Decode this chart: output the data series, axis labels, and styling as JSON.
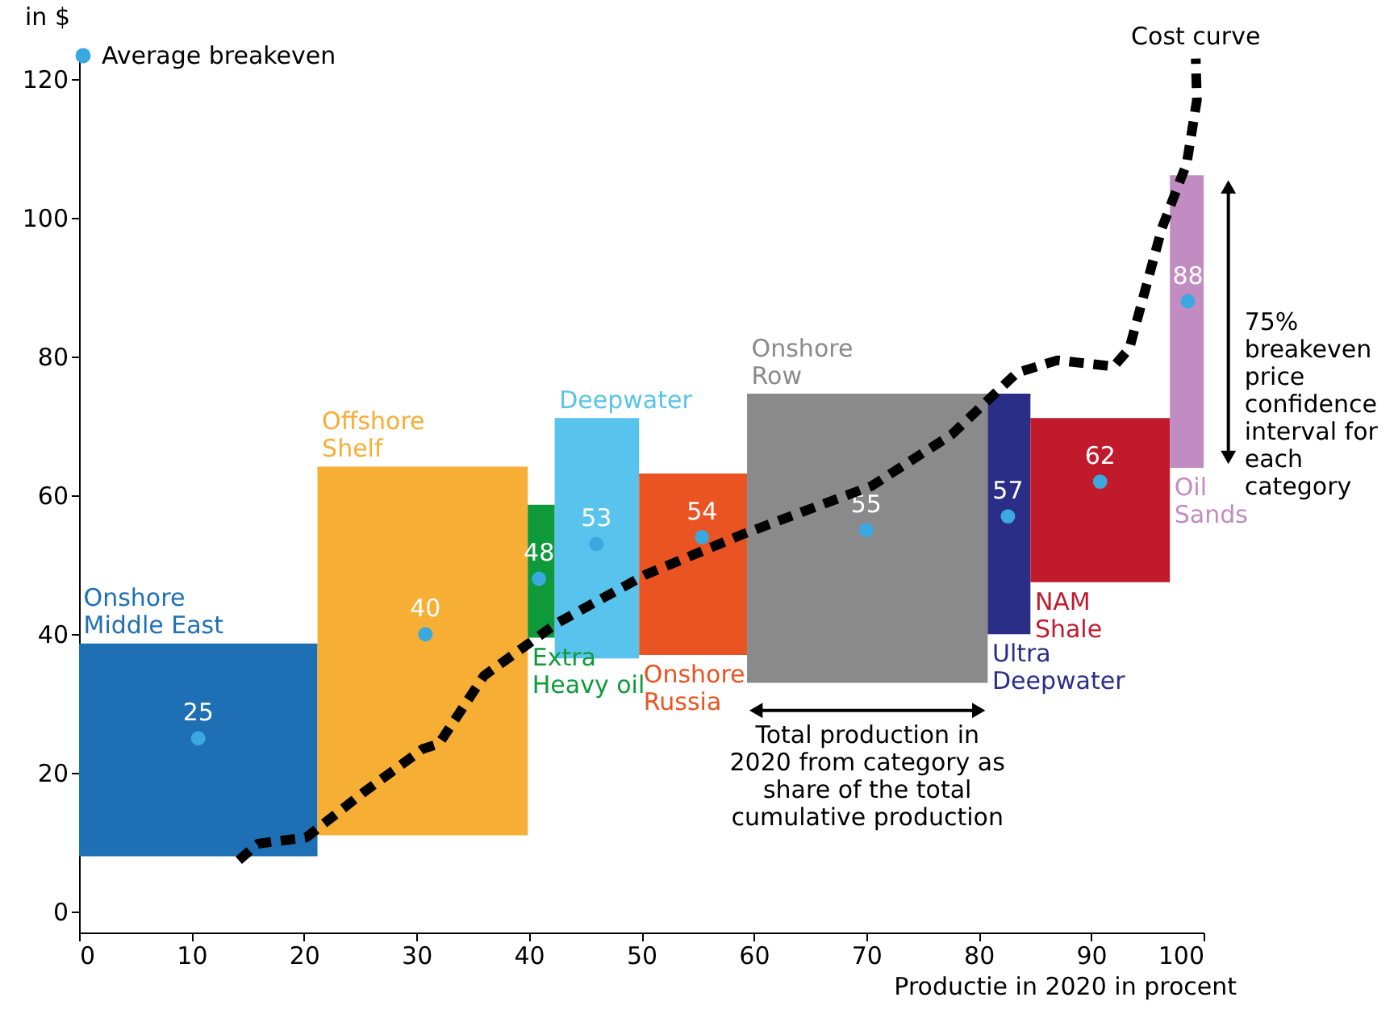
{
  "chart_data": {
    "type": "bar",
    "xlabel": "Productie in 2020 in procent",
    "ylabel": "in $",
    "xlim": [
      0,
      100
    ],
    "ylim": [
      -3,
      124
    ],
    "xticks": [
      0,
      10,
      20,
      30,
      40,
      50,
      60,
      70,
      80,
      90,
      100
    ],
    "yticks": [
      0,
      20,
      40,
      60,
      80,
      100,
      120
    ],
    "grid": false,
    "legend": "top left",
    "series": [
      {
        "name": "Onshore Middle East",
        "color": "#1f6fb5",
        "x": [
          10.6
        ],
        "base": [
          8
        ],
        "values": [
          30.5
        ],
        "xerrors": [
          [
            0,
            21.2
          ]
        ]
      },
      {
        "name": "Offshore Shelf",
        "color": "#f6ae35",
        "x": [
          30.55
        ],
        "base": [
          11
        ],
        "values": [
          53
        ],
        "xerrors": [
          [
            21.2,
            39.9
          ]
        ]
      },
      {
        "name": "Extra Heavy oil",
        "color": "#0e9a3a",
        "x": [
          41.1
        ],
        "base": [
          39.5
        ],
        "values": [
          19
        ],
        "xerrors": [
          [
            39.9,
            42.3
          ]
        ]
      },
      {
        "name": "Deepwater",
        "color": "#58c3ec",
        "x": [
          46.05
        ],
        "base": [
          36.5
        ],
        "values": [
          34.5
        ],
        "xerrors": [
          [
            42.3,
            49.8
          ]
        ]
      },
      {
        "name": "Onshore Russia",
        "color": "#ea5423",
        "x": [
          54.6
        ],
        "base": [
          37
        ],
        "values": [
          26
        ],
        "xerrors": [
          [
            49.8,
            59.4
          ]
        ]
      },
      {
        "name": "Onshore Row",
        "color": "#8a8a8a",
        "x": [
          70.1
        ],
        "base": [
          33
        ],
        "values": [
          41.5
        ],
        "xerrors": [
          [
            59.4,
            80.8
          ]
        ]
      },
      {
        "name": "Ultra Deepwater",
        "color": "#2b2e87",
        "x": [
          82.7
        ],
        "base": [
          40
        ],
        "values": [
          34.5
        ],
        "xerrors": [
          [
            80.8,
            84.6
          ]
        ]
      },
      {
        "name": "NAM Shale",
        "color": "#c21a2d",
        "x": [
          90.8
        ],
        "base": [
          47.5
        ],
        "values": [
          23.5
        ],
        "xerrors": [
          [
            84.6,
            97
          ]
        ]
      },
      {
        "name": "Oil Sands",
        "color": "#c18cc2",
        "x": [
          98.5
        ],
        "base": [
          64
        ],
        "values": [
          42
        ],
        "xerrors": [
          [
            97,
            100
          ]
        ]
      },
      {
        "type": "scatter",
        "name": "Average breakeven",
        "color": "#3aa9e0",
        "marker": "circle",
        "x": [
          10.6,
          30.8,
          40.9,
          46,
          55.4,
          70,
          82.6,
          90.8,
          98.6
        ],
        "values": [
          25,
          40,
          48,
          53,
          54,
          55,
          57,
          62,
          88
        ],
        "value_labels": [
          "25",
          "40",
          "48",
          "53",
          "54",
          "55",
          "57",
          "62",
          "88"
        ]
      },
      {
        "type": "line",
        "name": "Cost curve",
        "color": "#000000",
        "line_style": "dashed",
        "x": [
          14.2,
          15.9,
          20.2,
          25.3,
          30.6,
          32,
          36,
          42.5,
          50.4,
          59,
          70.5,
          77.6,
          83.4,
          87,
          92,
          93.4,
          96.3,
          98.5,
          99.4,
          99.3
        ],
        "values": [
          7.4,
          9.8,
          10.7,
          17.2,
          23.5,
          24.2,
          34,
          41.6,
          48.6,
          54.4,
          61.4,
          68.8,
          77.7,
          79.5,
          78.6,
          81.2,
          98.6,
          107.9,
          117,
          123
        ]
      }
    ],
    "annotations": [
      "Total production in 2020 from category as share of the total cumulative production",
      "75% breakeven price confidence interval for each category"
    ]
  }
}
